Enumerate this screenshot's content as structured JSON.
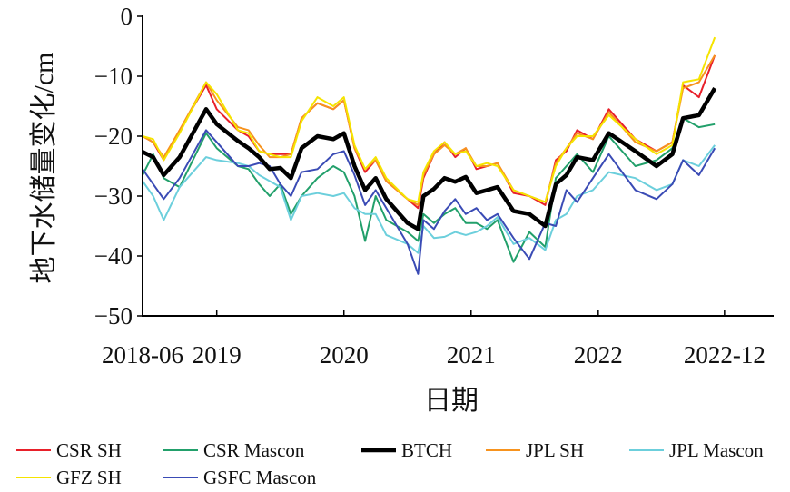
{
  "chart_data": {
    "type": "line",
    "title": "",
    "xlabel": "日期",
    "ylabel": "地下水储量变化/cm",
    "ylim": [
      -50,
      0
    ],
    "yticks": [
      0,
      -10,
      -20,
      -30,
      -40,
      -50
    ],
    "ytick_labels": [
      "0",
      "−10",
      "−20",
      "−30",
      "−40",
      "−50"
    ],
    "x_unit": "months since 2018-06",
    "xlim": [
      0,
      55
    ],
    "xticks": [
      {
        "month": 0,
        "label": "2018-06"
      },
      {
        "month": 7,
        "label": "2019"
      },
      {
        "month": 19,
        "label": "2020"
      },
      {
        "month": 31,
        "label": "2021"
      },
      {
        "month": 43,
        "label": "2022"
      },
      {
        "month": 55,
        "label": "2022-12"
      }
    ],
    "legend_position": "bottom",
    "x": [
      0,
      1,
      2,
      3.5,
      6,
      7,
      9,
      10,
      11,
      12,
      13,
      14,
      15,
      16.5,
      18,
      19,
      20,
      21,
      22,
      23,
      25,
      26,
      26.5,
      27.5,
      28.5,
      29.5,
      30.5,
      31.5,
      32.5,
      33.5,
      35,
      36.5,
      38,
      39,
      40,
      41,
      42.5,
      44,
      46.5,
      48.5,
      50,
      51,
      52.5,
      54
    ],
    "series": [
      {
        "name": "CSR SH",
        "color": "#e8202a",
        "width": 2,
        "values": [
          -20,
          -21,
          -24,
          -19,
          -11.5,
          -15.5,
          -19,
          -20,
          -22.5,
          -23,
          -23,
          -23,
          -17,
          -14.5,
          -15.5,
          -14,
          -22,
          -26,
          -24,
          -27.5,
          -30.5,
          -32,
          -27,
          -23,
          -21,
          -23.5,
          -22,
          -25.5,
          -25,
          -24.5,
          -29.5,
          -30,
          -31.5,
          -24,
          -22.5,
          -19,
          -20.5,
          -15.5,
          -20.5,
          -22.5,
          -21,
          -11.5,
          -13.5,
          -6.5
        ]
      },
      {
        "name": "CSR Mascon",
        "color": "#22a06b",
        "width": 2,
        "values": [
          -26.5,
          -23,
          -27,
          -28.5,
          -19.5,
          -22,
          -25,
          -25.5,
          -28,
          -30,
          -28,
          -33,
          -30,
          -27,
          -25,
          -26,
          -30,
          -37.5,
          -30,
          -34,
          -36,
          -37.5,
          -33,
          -34.5,
          -33,
          -32,
          -34.5,
          -34.5,
          -35.5,
          -34,
          -41,
          -36,
          -38.5,
          -27,
          -25,
          -23,
          -26,
          -20,
          -25,
          -24,
          -22,
          -17,
          -18.5,
          -18
        ]
      },
      {
        "name": "JPL SH",
        "color": "#f7931e",
        "width": 2,
        "values": [
          -20,
          -21,
          -23.5,
          -19,
          -11,
          -14,
          -18.5,
          -19,
          -21.5,
          -23.5,
          -23.5,
          -23,
          -17,
          -14.5,
          -15.5,
          -14,
          -22,
          -25.5,
          -24,
          -27.5,
          -30.5,
          -31.5,
          -26.5,
          -23,
          -21.5,
          -23,
          -22,
          -25,
          -25,
          -24.5,
          -29,
          -30,
          -31,
          -24.5,
          -22,
          -19.5,
          -20.5,
          -16,
          -21,
          -22.5,
          -21,
          -12,
          -11,
          -6.5
        ]
      },
      {
        "name": "JPL Mascon",
        "color": "#6ccfdc",
        "width": 2,
        "values": [
          -27.5,
          -30,
          -34,
          -28.5,
          -23.5,
          -24,
          -24.5,
          -25,
          -26.5,
          -27.5,
          -28.5,
          -34,
          -30,
          -29.5,
          -30,
          -29.5,
          -32,
          -33,
          -33,
          -36.5,
          -38,
          -39.5,
          -35,
          -37,
          -36.8,
          -36,
          -36.5,
          -36,
          -35,
          -33.5,
          -38,
          -37,
          -39,
          -34,
          -33,
          -30,
          -29,
          -26,
          -27,
          -29,
          -28,
          -24,
          -25,
          -21.5
        ]
      },
      {
        "name": "GFZ SH",
        "color": "#f5e400",
        "width": 2,
        "values": [
          -20,
          -20.5,
          -24,
          -19.5,
          -11,
          -13,
          -19,
          -19.5,
          -22.5,
          -23,
          -23.5,
          -23.5,
          -17.5,
          -13.5,
          -15,
          -13.5,
          -21.5,
          -25.5,
          -23.5,
          -27,
          -30.5,
          -31,
          -26,
          -22.5,
          -21,
          -23,
          -22.5,
          -25,
          -24.5,
          -25,
          -29,
          -30,
          -31,
          -25,
          -22,
          -20,
          -20,
          -16.5,
          -20.5,
          -23,
          -21.5,
          -11,
          -10.5,
          -3.5
        ]
      },
      {
        "name": "GSFC Mascon",
        "color": "#3a4bb5",
        "width": 2,
        "values": [
          -25.5,
          -28,
          -30.5,
          -27,
          -19,
          -21,
          -25,
          -25,
          -24.5,
          -25,
          -28,
          -30,
          -26,
          -25.5,
          -23,
          -22.5,
          -26.5,
          -31.5,
          -29,
          -32,
          -38,
          -43,
          -34,
          -35.5,
          -32.5,
          -30.5,
          -33,
          -32,
          -34,
          -33,
          -37,
          -40.5,
          -34.5,
          -35,
          -29,
          -31,
          -27,
          -23,
          -29,
          -30.5,
          -28,
          -24,
          -26.5,
          -22
        ]
      },
      {
        "name": "BTCH",
        "color": "#000000",
        "width": 4.5,
        "values": [
          -22.6,
          -23.5,
          -26.5,
          -23.5,
          -15.5,
          -18,
          -20.8,
          -22,
          -23.5,
          -25.5,
          -25.3,
          -27,
          -22,
          -20,
          -20.5,
          -19.5,
          -25,
          -29,
          -27,
          -30.5,
          -34.5,
          -35.5,
          -30,
          -28.8,
          -27,
          -27.6,
          -26.8,
          -29.5,
          -29,
          -28.5,
          -32.5,
          -33,
          -35,
          -28,
          -26.5,
          -23.5,
          -24,
          -19.5,
          -22.5,
          -25,
          -23,
          -17,
          -16.5,
          -12
        ]
      }
    ],
    "legend_order": [
      "CSR SH",
      "CSR Mascon",
      "BTCH",
      "JPL SH",
      "JPL Mascon",
      "GFZ SH",
      "GSFC Mascon"
    ]
  }
}
